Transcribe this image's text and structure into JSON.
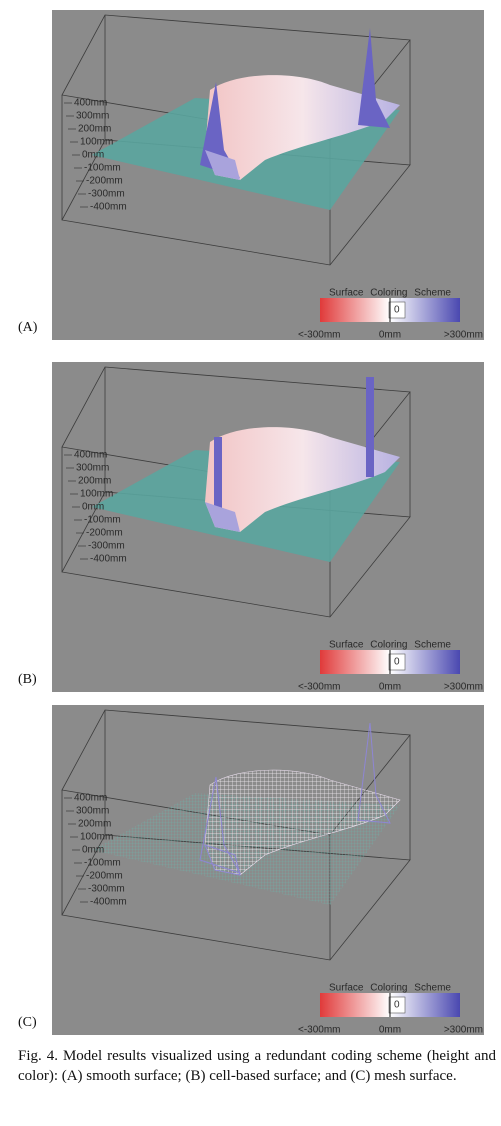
{
  "panels": [
    {
      "label": "(A)",
      "axis_labels": [
        "400mm",
        "300mm",
        "200mm",
        "100mm",
        "0mm",
        "-100mm",
        "-200mm",
        "-300mm",
        "-400mm"
      ],
      "legend": {
        "title": "Surface Coloring Scheme",
        "center": "0",
        "min": "<-300mm",
        "mid": "0mm",
        "max": ">300mm"
      }
    },
    {
      "label": "(B)",
      "axis_labels": [
        "400mm",
        "300mm",
        "200mm",
        "100mm",
        "0mm",
        "-100mm",
        "-200mm",
        "-300mm",
        "-400mm"
      ],
      "legend": {
        "title": "Surface Coloring Scheme",
        "center": "0",
        "min": "<-300mm",
        "mid": "0mm",
        "max": ">300mm"
      }
    },
    {
      "label": "(C)",
      "axis_labels": [
        "400mm",
        "300mm",
        "200mm",
        "100mm",
        "0mm",
        "-100mm",
        "-200mm",
        "-300mm",
        "-400mm"
      ],
      "legend": {
        "title": "Surface Coloring Scheme",
        "center": "0",
        "min": "<-300mm",
        "mid": "0mm",
        "max": ">300mm"
      }
    }
  ],
  "caption": "Fig. 4. Model results visualized using a redundant coding scheme (height and color): (A) smooth surface; (B) cell-based surface; and (C) mesh surface."
}
